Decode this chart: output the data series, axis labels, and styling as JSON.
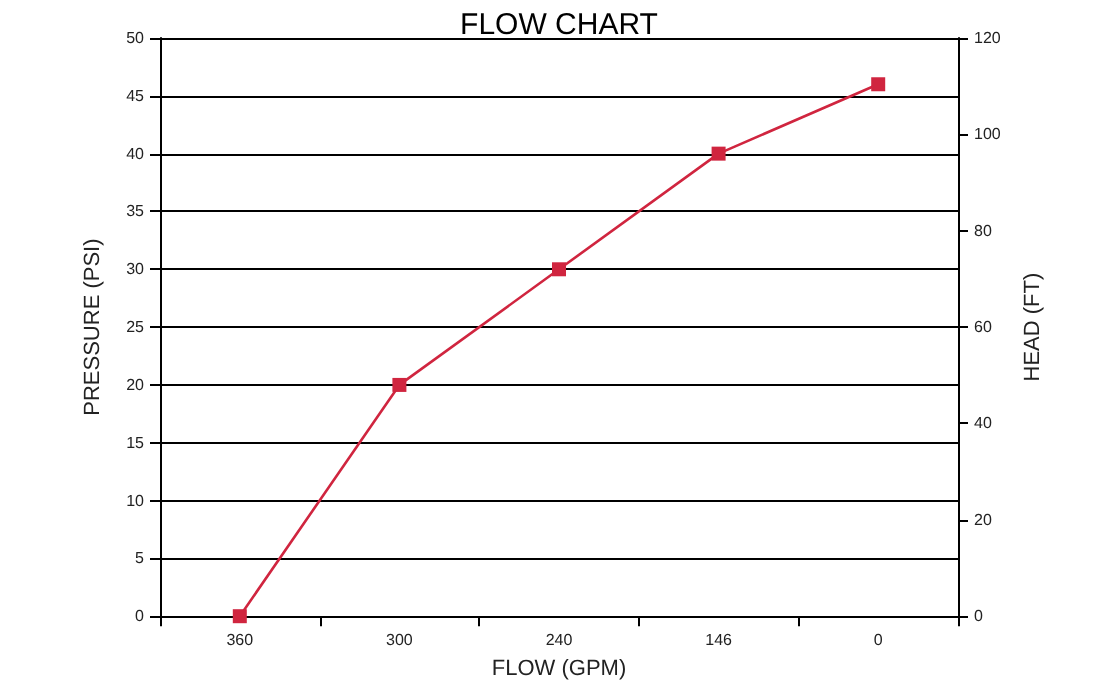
{
  "chart_data": {
    "type": "line",
    "title": "FLOW CHART",
    "xlabel": "FLOW (GPM)",
    "ylabel": "PRESSURE (PSI)",
    "y2label": "HEAD (FT)",
    "categories": [
      "360",
      "300",
      "240",
      "146",
      "0"
    ],
    "series": [
      {
        "color": "#d0253f",
        "values": [
          0,
          20,
          30,
          40,
          46
        ]
      }
    ],
    "ylim": [
      0,
      50
    ],
    "yticks": [
      0,
      5,
      10,
      15,
      20,
      25,
      30,
      35,
      40,
      45,
      50
    ],
    "y2lim": [
      0,
      120
    ],
    "y2ticks": [
      0,
      20,
      40,
      60,
      80,
      100,
      120
    ],
    "grid": "y",
    "marker": "square",
    "line_style": "solid"
  }
}
